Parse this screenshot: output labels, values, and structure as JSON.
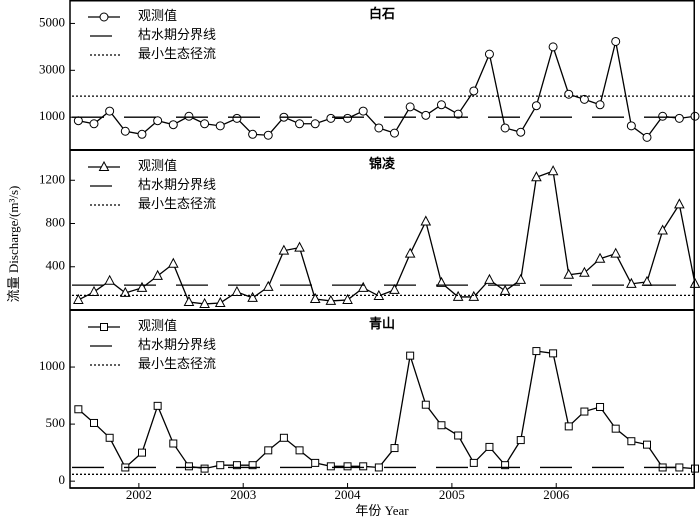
{
  "x_axis": {
    "label": "年份 Year",
    "xlim": [
      2001.34,
      2007.33
    ],
    "xticks": [
      2002,
      2003,
      2004,
      2005,
      2006
    ],
    "x": [
      2001.42,
      2001.57,
      2001.72,
      2001.87,
      2002.03,
      2002.18,
      2002.33,
      2002.48,
      2002.63,
      2002.78,
      2002.94,
      2003.09,
      2003.24,
      2003.39,
      2003.54,
      2003.69,
      2003.84,
      2004.0,
      2004.15,
      2004.3,
      2004.45,
      2004.6,
      2004.75,
      2004.9,
      2005.06,
      2005.21,
      2005.36,
      2005.51,
      2005.66,
      2005.81,
      2005.97,
      2006.12,
      2006.27,
      2006.42,
      2006.57,
      2006.72,
      2006.87,
      2007.02,
      2007.18,
      2007.33
    ]
  },
  "y_label": "流量 Discharge/(m³/s)",
  "chart_data": [
    {
      "type": "line",
      "title": "白石",
      "ylim": [
        -400,
        6000
      ],
      "yticks": [
        1000,
        3000,
        5000
      ],
      "series": [
        {
          "name": "观测值",
          "marker": "circle",
          "color": "#000000",
          "values": [
            850,
            720,
            1260,
            400,
            270,
            850,
            680,
            1040,
            720,
            630,
            950,
            270,
            230,
            1000,
            720,
            720,
            950,
            950,
            1260,
            540,
            320,
            1440,
            1080,
            1530,
            1130,
            2120,
            3690,
            540,
            360,
            1490,
            4000,
            1980,
            1760,
            1530,
            4230,
            630,
            140,
            1040,
            950,
            1040
          ]
        },
        {
          "name": "枯水期分界线",
          "style": "dashed",
          "color": "#000000",
          "value": 1000
        },
        {
          "name": "最小生态径流",
          "style": "dotted",
          "color": "#000000",
          "value": 1900
        }
      ]
    },
    {
      "type": "line",
      "title": "锦凌",
      "ylim": [
        0,
        1480
      ],
      "yticks": [
        400,
        800,
        1200
      ],
      "series": [
        {
          "name": "观测值",
          "marker": "triangle",
          "color": "#000000",
          "values": [
            93,
            167,
            270,
            158,
            205,
            316,
            428,
            74,
            56,
            65,
            167,
            112,
            214,
            549,
            577,
            102,
            84,
            93,
            205,
            130,
            186,
            521,
            819,
            251,
            121,
            121,
            279,
            177,
            279,
            1228,
            1284,
            326,
            344,
            474,
            521,
            242,
            260,
            735,
            977,
            242
          ]
        },
        {
          "name": "枯水期分界线",
          "style": "dashed",
          "color": "#000000",
          "value": 230
        },
        {
          "name": "最小生态径流",
          "style": "dotted",
          "color": "#000000",
          "value": 135
        }
      ]
    },
    {
      "type": "line",
      "title": "青山",
      "ylim": [
        -60,
        1500
      ],
      "yticks": [
        0,
        500,
        1000
      ],
      "series": [
        {
          "name": "观测值",
          "marker": "square",
          "color": "#000000",
          "values": [
            630,
            510,
            380,
            120,
            250,
            660,
            330,
            130,
            110,
            140,
            140,
            140,
            270,
            380,
            270,
            160,
            130,
            130,
            130,
            120,
            290,
            1100,
            670,
            490,
            400,
            160,
            300,
            140,
            360,
            1140,
            1120,
            480,
            610,
            650,
            460,
            350,
            320,
            120,
            120,
            110
          ]
        },
        {
          "name": "枯水期分界线",
          "style": "dashed",
          "color": "#000000",
          "value": 120
        },
        {
          "name": "最小生态径流",
          "style": "dotted",
          "color": "#000000",
          "value": 60
        }
      ]
    }
  ]
}
